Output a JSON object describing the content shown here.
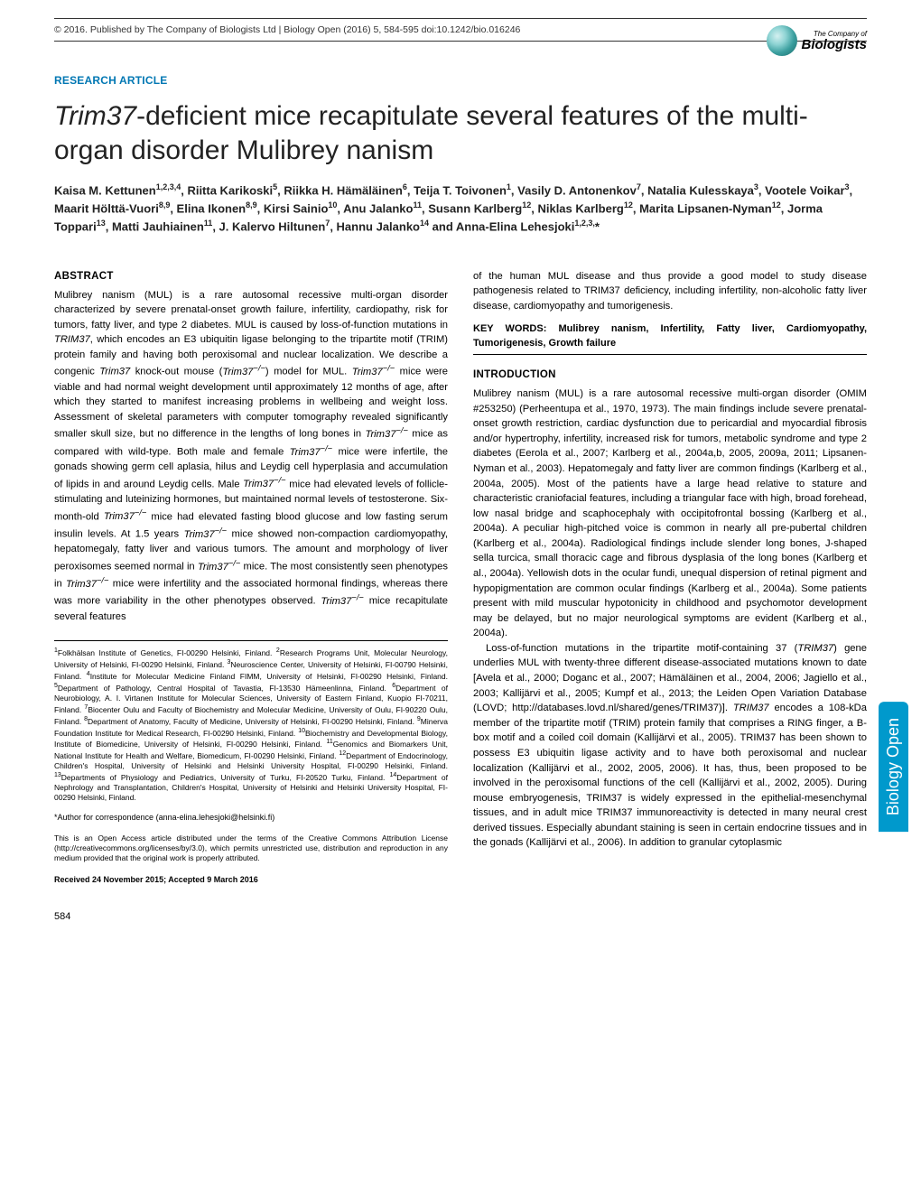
{
  "header": {
    "copyright": "© 2016. Published by The Company of Biologists Ltd | Biology Open (2016) 5, 584-595 doi:10.1242/bio.016246",
    "logo_company": "The Company of",
    "logo_name": "Biologists"
  },
  "article_type": "RESEARCH ARTICLE",
  "title_prefix": "Trim37",
  "title_rest": "-deficient mice recapitulate several features of the multi-organ disorder Mulibrey nanism",
  "authors": "Kaisa M. Kettunen<sup>1,2,3,4</sup>, Riitta Karikoski<sup>5</sup>, Riikka H. Hämäläinen<sup>6</sup>, Teija T. Toivonen<sup>1</sup>, Vasily D. Antonenkov<sup>7</sup>, Natalia Kulesskaya<sup>3</sup>, Vootele Voikar<sup>3</sup>, Maarit Hölttä-Vuori<sup>8,9</sup>, Elina Ikonen<sup>8,9</sup>, Kirsi Sainio<sup>10</sup>, Anu Jalanko<sup>11</sup>, Susann Karlberg<sup>12</sup>, Niklas Karlberg<sup>12</sup>, Marita Lipsanen-Nyman<sup>12</sup>, Jorma Toppari<sup>13</sup>, Matti Jauhiainen<sup>11</sup>, J. Kalervo Hiltunen<sup>7</sup>, Hannu Jalanko<sup>14</sup> and Anna-Elina Lehesjoki<sup>1,2,3,</sup>*",
  "abstract_head": "ABSTRACT",
  "abstract": "Mulibrey nanism (MUL) is a rare autosomal recessive multi-organ disorder characterized by severe prenatal-onset growth failure, infertility, cardiopathy, risk for tumors, fatty liver, and type 2 diabetes. MUL is caused by loss-of-function mutations in <span class=\"italic\">TRIM37</span>, which encodes an E3 ubiquitin ligase belonging to the tripartite motif (TRIM) protein family and having both peroxisomal and nuclear localization. We describe a congenic <span class=\"italic\">Trim37</span> knock-out mouse (<span class=\"italic\">Trim37<sup>−/−</sup></span>) model for MUL. <span class=\"italic\">Trim37<sup>−/−</sup></span> mice were viable and had normal weight development until approximately 12 months of age, after which they started to manifest increasing problems in wellbeing and weight loss. Assessment of skeletal parameters with computer tomography revealed significantly smaller skull size, but no difference in the lengths of long bones in <span class=\"italic\">Trim37<sup>−/−</sup></span> mice as compared with wild-type. Both male and female <span class=\"italic\">Trim37<sup>−/−</sup></span> mice were infertile, the gonads showing germ cell aplasia, hilus and Leydig cell hyperplasia and accumulation of lipids in and around Leydig cells. Male <span class=\"italic\">Trim37<sup>−/−</sup></span> mice had elevated levels of follicle-stimulating and luteinizing hormones, but maintained normal levels of testosterone. Six-month-old <span class=\"italic\">Trim37<sup>−/−</sup></span> mice had elevated fasting blood glucose and low fasting serum insulin levels. At 1.5 years <span class=\"italic\">Trim37<sup>−/−</sup></span> mice showed non-compaction cardiomyopathy, hepatomegaly, fatty liver and various tumors. The amount and morphology of liver peroxisomes seemed normal in <span class=\"italic\">Trim37<sup>−/−</sup></span> mice. The most consistently seen phenotypes in <span class=\"italic\">Trim37<sup>−/−</sup></span> mice were infertility and the associated hormonal findings, whereas there was more variability in the other phenotypes observed. <span class=\"italic\">Trim37<sup>−/−</sup></span> mice recapitulate several features",
  "affiliations": "<sup>1</sup>Folkhälsan Institute of Genetics, FI-00290 Helsinki, Finland. <sup>2</sup>Research Programs Unit, Molecular Neurology, University of Helsinki, FI-00290 Helsinki, Finland. <sup>3</sup>Neuroscience Center, University of Helsinki, FI-00790 Helsinki, Finland. <sup>4</sup>Institute for Molecular Medicine Finland FIMM, University of Helsinki, FI-00290 Helsinki, Finland. <sup>5</sup>Department of Pathology, Central Hospital of Tavastia, FI-13530 Hämeenlinna, Finland. <sup>6</sup>Department of Neurobiology, A. I. Virtanen Institute for Molecular Sciences, University of Eastern Finland, Kuopio FI-70211, Finland. <sup>7</sup>Biocenter Oulu and Faculty of Biochemistry and Molecular Medicine, University of Oulu, FI-90220 Oulu, Finland. <sup>8</sup>Department of Anatomy, Faculty of Medicine, University of Helsinki, FI-00290 Helsinki, Finland. <sup>9</sup>Minerva Foundation Institute for Medical Research, FI-00290 Helsinki, Finland. <sup>10</sup>Biochemistry and Developmental Biology, Institute of Biomedicine, University of Helsinki, FI-00290 Helsinki, Finland. <sup>11</sup>Genomics and Biomarkers Unit, National Institute for Health and Welfare, Biomedicum, FI-00290 Helsinki, Finland. <sup>12</sup>Department of Endocrinology, Children's Hospital, University of Helsinki and Helsinki University Hospital, FI-00290 Helsinki, Finland. <sup>13</sup>Departments of Physiology and Pediatrics, University of Turku, FI-20520 Turku, Finland. <sup>14</sup>Department of Nephrology and Transplantation, Children's Hospital, University of Helsinki and Helsinki University Hospital, FI-00290 Helsinki, Finland.",
  "correspondence": "*Author for correspondence (anna-elina.lehesjoki@helsinki.fi)",
  "license": "This is an Open Access article distributed under the terms of the Creative Commons Attribution License (http://creativecommons.org/licenses/by/3.0), which permits unrestricted use, distribution and reproduction in any medium provided that the original work is properly attributed.",
  "received": "Received 24 November 2015; Accepted 9 March 2016",
  "col2_top": "of the human MUL disease and thus provide a good model to study disease pathogenesis related to TRIM37 deficiency, including infertility, non-alcoholic fatty liver disease, cardiomyopathy and tumorigenesis.",
  "keywords": "KEY WORDS: Mulibrey nanism, Infertility, Fatty liver, Cardiomyopathy, Tumorigenesis, Growth failure",
  "intro_head": "INTRODUCTION",
  "intro_p1": "Mulibrey nanism (MUL) is a rare autosomal recessive multi-organ disorder (OMIM #253250) (Perheentupa et al., 1970, 1973). The main findings include severe prenatal-onset growth restriction, cardiac dysfunction due to pericardial and myocardial fibrosis and/or hypertrophy, infertility, increased risk for tumors, metabolic syndrome and type 2 diabetes (Eerola et al., 2007; Karlberg et al., 2004a,b, 2005, 2009a, 2011; Lipsanen-Nyman et al., 2003). Hepatomegaly and fatty liver are common findings (Karlberg et al., 2004a, 2005). Most of the patients have a large head relative to stature and characteristic craniofacial features, including a triangular face with high, broad forehead, low nasal bridge and scaphocephaly with occipitofrontal bossing (Karlberg et al., 2004a). A peculiar high-pitched voice is common in nearly all pre-pubertal children (Karlberg et al., 2004a). Radiological findings include slender long bones, J-shaped sella turcica, small thoracic cage and fibrous dysplasia of the long bones (Karlberg et al., 2004a). Yellowish dots in the ocular fundi, unequal dispersion of retinal pigment and hypopigmentation are common ocular findings (Karlberg et al., 2004a). Some patients present with mild muscular hypotonicity in childhood and psychomotor development may be delayed, but no major neurological symptoms are evident (Karlberg et al., 2004a).",
  "intro_p2": "Loss-of-function mutations in the tripartite motif-containing 37 (<span class=\"italic\">TRIM37</span>) gene underlies MUL with twenty-three different disease-associated mutations known to date [Avela et al., 2000; Doganc et al., 2007; Hämäläinen et al., 2004, 2006; Jagiello et al., 2003; Kallijärvi et al., 2005; Kumpf et al., 2013; the Leiden Open Variation Database (LOVD; http://databases.lovd.nl/shared/genes/TRIM37)]. <span class=\"italic\">TRIM37</span> encodes a 108-kDa member of the tripartite motif (TRIM) protein family that comprises a RING finger, a B-box motif and a coiled coil domain (Kallijärvi et al., 2005). TRIM37 has been shown to possess E3 ubiquitin ligase activity and to have both peroxisomal and nuclear localization (Kallijärvi et al., 2002, 2005, 2006). It has, thus, been proposed to be involved in the peroxisomal functions of the cell (Kallijärvi et al., 2002, 2005). During mouse embryogenesis, TRIM37 is widely expressed in the epithelial-mesenchymal tissues, and in adult mice TRIM37 immunoreactivity is detected in many neural crest derived tissues. Especially abundant staining is seen in certain endocrine tissues and in the gonads (Kallijärvi et al., 2006). In addition to granular cytoplasmic",
  "page_num": "584",
  "side_tab": "Biology Open",
  "colors": {
    "link_blue": "#0077b3",
    "tab_bg": "#0099cc",
    "text": "#222222",
    "rule": "#333333"
  }
}
